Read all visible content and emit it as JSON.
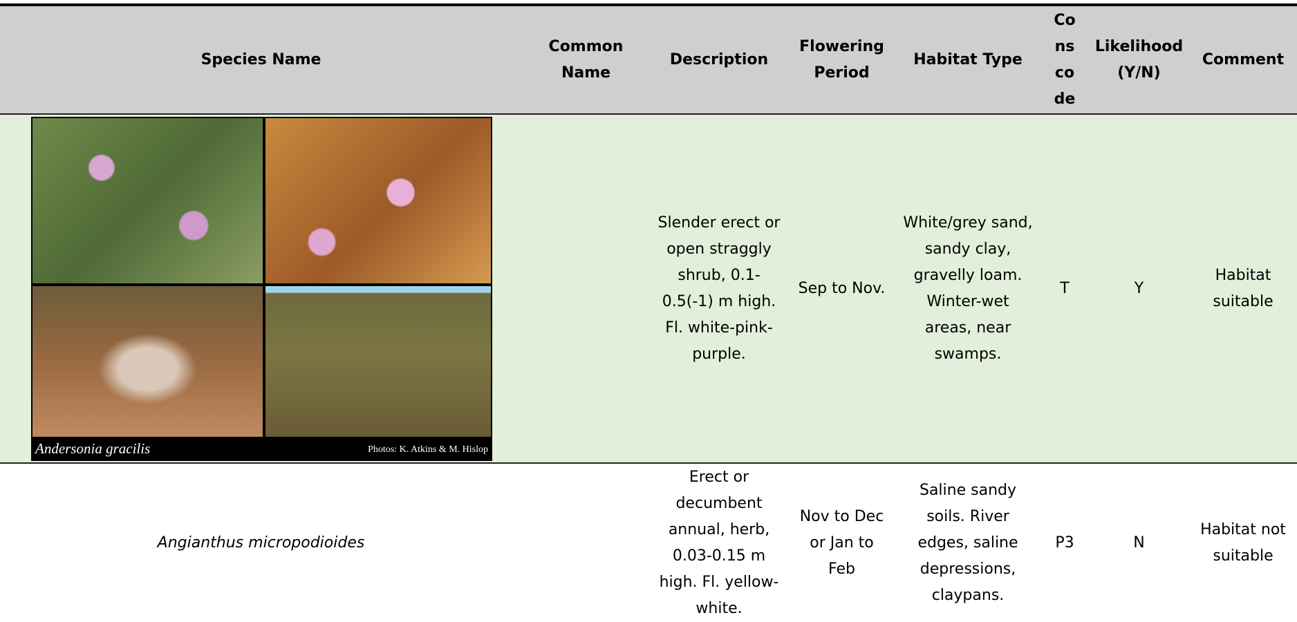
{
  "table": {
    "headers": [
      "Species Name",
      "Common Name",
      "Description",
      "Flowering Period",
      "Habitat Type",
      "Cons code",
      "Likelihood (Y/N)",
      "Comment"
    ],
    "rows": [
      {
        "photo_caption": "Andersonia gracilis",
        "photo_credit": "Photos: K. Atkins & M. Hislop",
        "description": "Slender erect or open straggly shrub, 0.1-0.5(-1) m high. Fl. white-pink-purple.",
        "flowering_period": "Sep to Nov.",
        "habitat_type": "White/grey sand, sandy clay, gravelly loam. Winter-wet areas, near swamps.",
        "cons_code": "T",
        "likelihood": "Y",
        "comment": "Habitat suitable"
      },
      {
        "species_name": "Angianthus micropodioides",
        "description": "Erect or decumbent annual, herb, 0.03-0.15 m high. Fl. yellow-white.",
        "flowering_period": "Nov to Dec or Jan to Feb",
        "habitat_type": "Saline sandy soils. River edges, saline depressions, claypans.",
        "cons_code": "P3",
        "likelihood": "N",
        "comment": "Habitat not suitable"
      }
    ]
  }
}
